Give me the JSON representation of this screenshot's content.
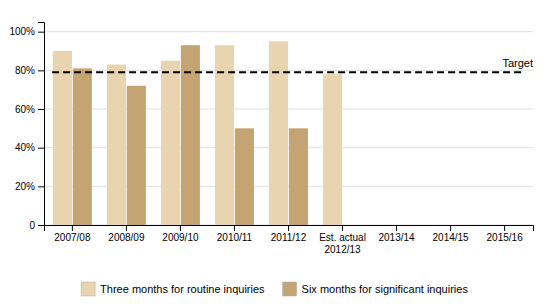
{
  "chart_data": {
    "type": "bar",
    "categories": [
      "2007/08",
      "2008/09",
      "2009/10",
      "2010/11",
      "2011/12",
      "Est. actual\n2012/13",
      "2013/14",
      "2014/15",
      "2015/16"
    ],
    "series": [
      {
        "name": "Three months for routine inquiries",
        "color": "#e8d5b0",
        "values": [
          90,
          83,
          85,
          93,
          95,
          78,
          null,
          null,
          null
        ]
      },
      {
        "name": "Six months for significant inquiries",
        "color": "#c4a472",
        "values": [
          81,
          72,
          93,
          50,
          50,
          null,
          null,
          null,
          null
        ]
      }
    ],
    "reference_lines": [
      {
        "value": 79,
        "label": "Target",
        "line_style": "dashed"
      }
    ],
    "ylim": [
      0,
      105
    ],
    "yticks": [
      0,
      {
        "value": 20,
        "label": "20%"
      },
      {
        "value": 40,
        "label": "40%"
      },
      {
        "value": 60,
        "label": "60%"
      },
      {
        "value": 80,
        "label": "80%"
      },
      {
        "value": 100,
        "label": "100%"
      }
    ],
    "grid": true,
    "legend": "bottom"
  }
}
